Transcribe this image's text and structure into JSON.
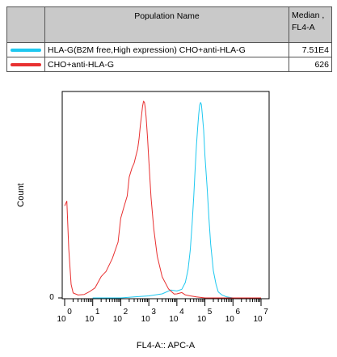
{
  "table": {
    "header_name": "Population Name",
    "header_median": "Median , FL4-A",
    "rows": [
      {
        "name": "HLA-G(B2M free,High expression) CHO+anti-HLA-G",
        "median": "7.51E4",
        "color": "#1ec8f0"
      },
      {
        "name": "CHO+anti-HLA-G",
        "median": "626",
        "color": "#e83030"
      }
    ]
  },
  "chart_data": {
    "type": "area",
    "title": "",
    "xlabel": "FL4-A:: APC-A",
    "ylabel": "Count",
    "xscale": "log",
    "xlim": [
      1,
      10000000
    ],
    "ylim": [
      0,
      100
    ],
    "x_tick_labels": [
      "0",
      "1",
      "2",
      "3",
      "4",
      "5",
      "6",
      "7"
    ],
    "y_tick_labels": [
      "0"
    ],
    "series": [
      {
        "name": "HLA-G(B2M free,High expression) CHO+anti-HLA-G",
        "color": "#1ec8f0",
        "x": [
          10.0,
          100.0,
          300.0,
          1000.0,
          3000.0,
          6000.0,
          10000.0,
          15000.0,
          20000.0,
          25000.0,
          30000.0,
          35000.0,
          40000.0,
          45000.0,
          50000.0,
          55000.0,
          60000.0,
          65000.0,
          70000.0,
          75000.0,
          80000.0,
          90000.0,
          100000.0,
          120000.0,
          140000.0,
          160000.0,
          200000.0,
          250000.0,
          300000.0,
          400000.0,
          600000.0,
          1000000.0,
          3000000.0,
          10000000.0
        ],
        "y": [
          0,
          0,
          0.5,
          1,
          2,
          2.5,
          2.5,
          4,
          8,
          15,
          25,
          38,
          52,
          65,
          76,
          84,
          90,
          94,
          95,
          94,
          90,
          82,
          70,
          55,
          40,
          28,
          15,
          8,
          4,
          1.5,
          0.5,
          0,
          0,
          0
        ]
      },
      {
        "name": "CHO+anti-HLA-G",
        "color": "#e83030",
        "x": [
          1,
          1.2,
          1.4,
          1.7,
          2,
          3,
          5,
          8,
          12,
          20,
          30,
          50,
          80,
          100,
          130,
          170,
          200,
          250,
          300,
          350,
          400,
          450,
          500,
          550,
          600,
          650,
          700,
          750,
          800,
          900,
          1000,
          1200,
          1500,
          2000,
          3000,
          5000,
          8000,
          10000.0,
          15000.0,
          20000.0,
          30000.0,
          50000.0,
          100000.0,
          1000000.0,
          10000000.0
        ],
        "y": [
          45,
          48,
          25,
          8,
          4,
          3,
          3,
          4,
          5,
          10,
          12,
          18,
          26,
          38,
          44,
          50,
          60,
          65,
          68,
          72,
          75,
          80,
          86,
          90,
          94,
          96,
          95,
          92,
          88,
          78,
          68,
          50,
          35,
          22,
          12,
          6,
          3,
          2,
          2.5,
          1.5,
          1,
          0.5,
          0,
          0,
          0
        ]
      }
    ]
  }
}
